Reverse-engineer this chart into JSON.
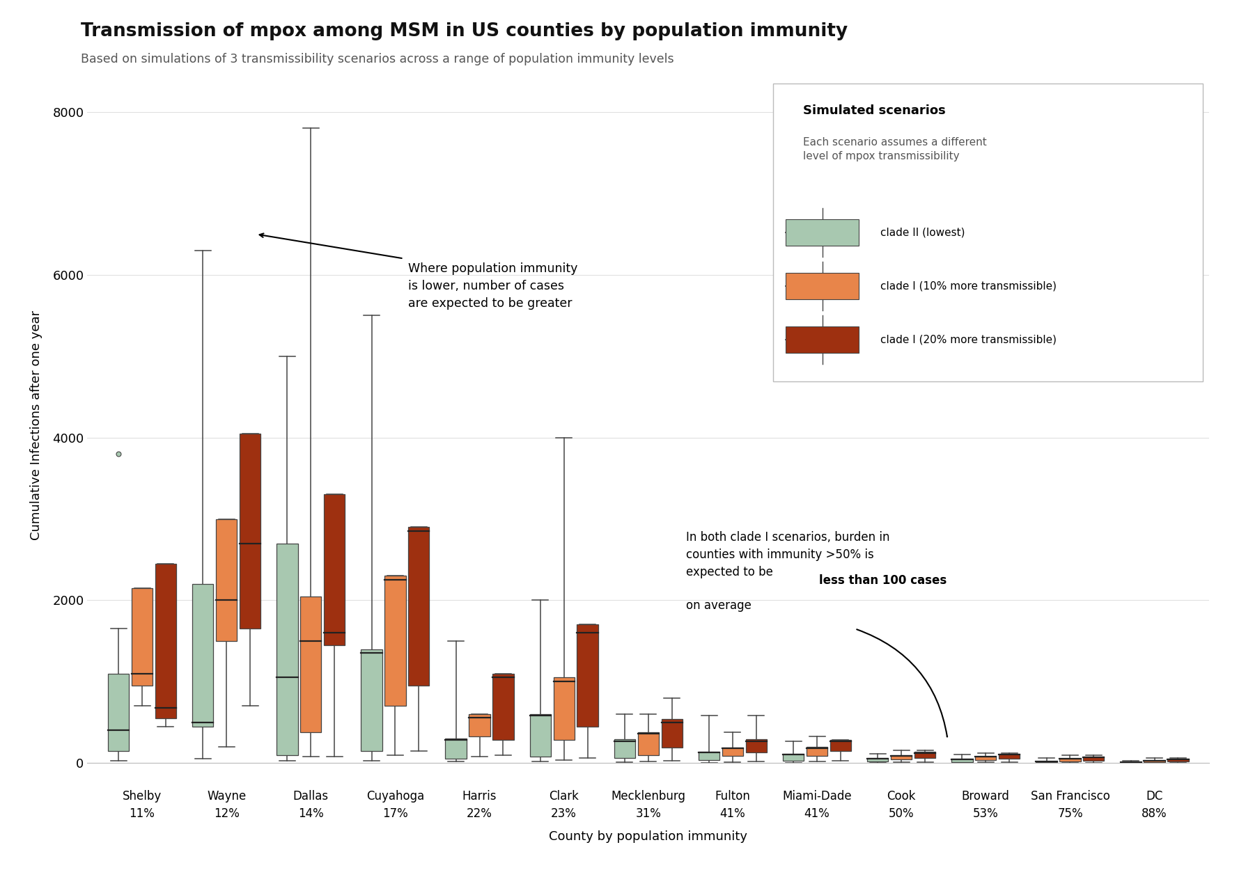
{
  "title": "Transmission of mpox among MSM in US counties by population immunity",
  "subtitle": "Based on simulations of 3 transmissibility scenarios across a range of population immunity levels",
  "ylabel": "Cumulative Infections after one year",
  "xlabel": "County by population immunity",
  "ylim": [
    0,
    8300
  ],
  "yticks": [
    0,
    2000,
    4000,
    6000,
    8000
  ],
  "counties": [
    "Shelby",
    "Wayne",
    "Dallas",
    "Cuyahoga",
    "Harris",
    "Clark",
    "Mecklenburg",
    "Fulton",
    "Miami-Dade",
    "Cook",
    "Broward",
    "San Francisco",
    "DC"
  ],
  "immunity": [
    "11%",
    "12%",
    "14%",
    "17%",
    "22%",
    "23%",
    "31%",
    "41%",
    "41%",
    "50%",
    "53%",
    "75%",
    "88%"
  ],
  "colors": {
    "clade2": "#a8c8b0",
    "clade1_10": "#e8854a",
    "clade1_20": "#9e3010"
  },
  "box_data": {
    "Shelby": {
      "clade2": {
        "whislo": 30,
        "q1": 150,
        "med": 400,
        "q3": 1100,
        "whishi": 1650,
        "fliers": [
          3800
        ]
      },
      "clade1_10": {
        "whislo": 700,
        "q1": 950,
        "med": 1100,
        "q3": 2150,
        "whishi": 2150,
        "fliers": []
      },
      "clade1_20": {
        "whislo": 450,
        "q1": 550,
        "med": 680,
        "q3": 2450,
        "whishi": 2450,
        "fliers": []
      }
    },
    "Wayne": {
      "clade2": {
        "whislo": 50,
        "q1": 450,
        "med": 500,
        "q3": 2200,
        "whishi": 6300,
        "fliers": []
      },
      "clade1_10": {
        "whislo": 200,
        "q1": 1500,
        "med": 2000,
        "q3": 3000,
        "whishi": 3000,
        "fliers": []
      },
      "clade1_20": {
        "whislo": 700,
        "q1": 1650,
        "med": 2700,
        "q3": 4050,
        "whishi": 4050,
        "fliers": []
      }
    },
    "Dallas": {
      "clade2": {
        "whislo": 30,
        "q1": 100,
        "med": 1050,
        "q3": 2700,
        "whishi": 5000,
        "fliers": []
      },
      "clade1_10": {
        "whislo": 80,
        "q1": 380,
        "med": 1500,
        "q3": 2050,
        "whishi": 7800,
        "fliers": []
      },
      "clade1_20": {
        "whislo": 80,
        "q1": 1450,
        "med": 1600,
        "q3": 3300,
        "whishi": 3300,
        "fliers": []
      }
    },
    "Cuyahoga": {
      "clade2": {
        "whislo": 30,
        "q1": 150,
        "med": 1350,
        "q3": 1400,
        "whishi": 5500,
        "fliers": []
      },
      "clade1_10": {
        "whislo": 100,
        "q1": 700,
        "med": 2250,
        "q3": 2300,
        "whishi": 2300,
        "fliers": []
      },
      "clade1_20": {
        "whislo": 150,
        "q1": 950,
        "med": 2850,
        "q3": 2900,
        "whishi": 2900,
        "fliers": []
      }
    },
    "Harris": {
      "clade2": {
        "whislo": 20,
        "q1": 50,
        "med": 280,
        "q3": 300,
        "whishi": 1500,
        "fliers": []
      },
      "clade1_10": {
        "whislo": 80,
        "q1": 330,
        "med": 560,
        "q3": 600,
        "whishi": 600,
        "fliers": []
      },
      "clade1_20": {
        "whislo": 100,
        "q1": 280,
        "med": 1050,
        "q3": 1100,
        "whishi": 1100,
        "fliers": []
      }
    },
    "Clark": {
      "clade2": {
        "whislo": 20,
        "q1": 80,
        "med": 580,
        "q3": 600,
        "whishi": 2000,
        "fliers": []
      },
      "clade1_10": {
        "whislo": 40,
        "q1": 280,
        "med": 1000,
        "q3": 1050,
        "whishi": 4000,
        "fliers": []
      },
      "clade1_20": {
        "whislo": 60,
        "q1": 450,
        "med": 1600,
        "q3": 1700,
        "whishi": 1700,
        "fliers": []
      }
    },
    "Mecklenburg": {
      "clade2": {
        "whislo": 10,
        "q1": 60,
        "med": 270,
        "q3": 290,
        "whishi": 600,
        "fliers": []
      },
      "clade1_10": {
        "whislo": 20,
        "q1": 100,
        "med": 360,
        "q3": 380,
        "whishi": 600,
        "fliers": []
      },
      "clade1_20": {
        "whislo": 30,
        "q1": 190,
        "med": 500,
        "q3": 540,
        "whishi": 800,
        "fliers": []
      }
    },
    "Fulton": {
      "clade2": {
        "whislo": 5,
        "q1": 40,
        "med": 130,
        "q3": 140,
        "whishi": 580,
        "fliers": []
      },
      "clade1_10": {
        "whislo": 10,
        "q1": 85,
        "med": 180,
        "q3": 190,
        "whishi": 380,
        "fliers": []
      },
      "clade1_20": {
        "whislo": 20,
        "q1": 130,
        "med": 270,
        "q3": 290,
        "whishi": 580,
        "fliers": []
      }
    },
    "Miami-Dade": {
      "clade2": {
        "whislo": 5,
        "q1": 30,
        "med": 105,
        "q3": 115,
        "whishi": 270,
        "fliers": []
      },
      "clade1_10": {
        "whislo": 15,
        "q1": 90,
        "med": 185,
        "q3": 200,
        "whishi": 330,
        "fliers": []
      },
      "clade1_20": {
        "whislo": 25,
        "q1": 145,
        "med": 265,
        "q3": 280,
        "whishi": 280,
        "fliers": []
      }
    },
    "Cook": {
      "clade2": {
        "whislo": 3,
        "q1": 15,
        "med": 55,
        "q3": 65,
        "whishi": 115,
        "fliers": []
      },
      "clade1_10": {
        "whislo": 8,
        "q1": 45,
        "med": 90,
        "q3": 100,
        "whishi": 155,
        "fliers": []
      },
      "clade1_20": {
        "whislo": 12,
        "q1": 65,
        "med": 125,
        "q3": 135,
        "whishi": 155,
        "fliers": []
      }
    },
    "Broward": {
      "clade2": {
        "whislo": 3,
        "q1": 12,
        "med": 45,
        "q3": 50,
        "whishi": 105,
        "fliers": []
      },
      "clade1_10": {
        "whislo": 6,
        "q1": 35,
        "med": 75,
        "q3": 82,
        "whishi": 125,
        "fliers": []
      },
      "clade1_20": {
        "whislo": 8,
        "q1": 50,
        "med": 105,
        "q3": 115,
        "whishi": 125,
        "fliers": []
      }
    },
    "San Francisco": {
      "clade2": {
        "whislo": 1,
        "q1": 6,
        "med": 20,
        "q3": 22,
        "whishi": 60,
        "fliers": []
      },
      "clade1_10": {
        "whislo": 3,
        "q1": 18,
        "med": 50,
        "q3": 55,
        "whishi": 95,
        "fliers": []
      },
      "clade1_20": {
        "whislo": 5,
        "q1": 30,
        "med": 70,
        "q3": 75,
        "whishi": 95,
        "fliers": []
      }
    },
    "DC": {
      "clade2": {
        "whislo": 1,
        "q1": 3,
        "med": 10,
        "q3": 11,
        "whishi": 25,
        "fliers": []
      },
      "clade1_10": {
        "whislo": 2,
        "q1": 12,
        "med": 30,
        "q3": 33,
        "whishi": 60,
        "fliers": []
      },
      "clade1_20": {
        "whislo": 3,
        "q1": 20,
        "med": 45,
        "q3": 50,
        "whishi": 60,
        "fliers": []
      }
    }
  },
  "legend_title": "Simulated scenarios",
  "legend_subtitle": "Each scenario assumes a different\nlevel of mpox transmissibility",
  "legend_labels": [
    "clade II (lowest)",
    "clade I (10% more transmissible)",
    "clade I (20% more transmissible)"
  ]
}
